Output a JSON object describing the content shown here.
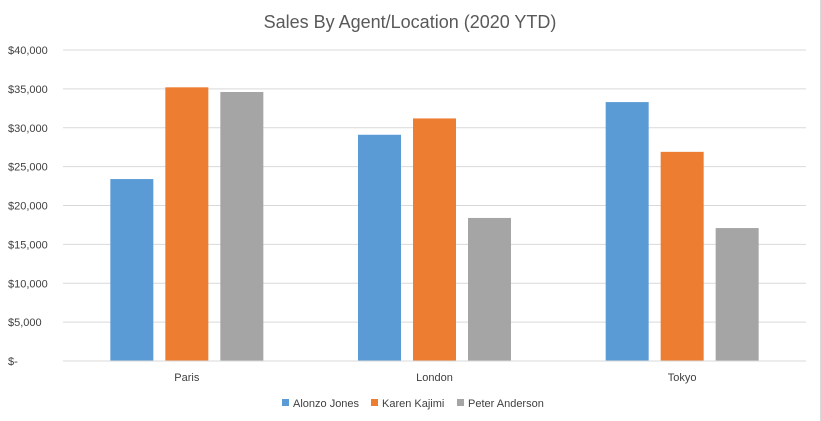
{
  "chart_data": {
    "type": "bar",
    "title": "Sales By Agent/Location (2020 YTD)",
    "xlabel": "",
    "ylabel": "",
    "categories": [
      "Paris",
      "London",
      "Tokyo"
    ],
    "series": [
      {
        "name": "Alonzo Jones",
        "color": "#5b9bd5",
        "values": [
          23400,
          29100,
          33300
        ]
      },
      {
        "name": "Karen Kajimi",
        "color": "#ed7d31",
        "values": [
          35200,
          31200,
          26900
        ]
      },
      {
        "name": "Peter Anderson",
        "color": "#a5a5a5",
        "values": [
          34600,
          18400,
          17100
        ]
      }
    ],
    "ylim": [
      0,
      40000
    ],
    "yticks": [
      0,
      5000,
      10000,
      15000,
      20000,
      25000,
      30000,
      35000,
      40000
    ],
    "ytick_labels": [
      "$-",
      "$5,000",
      "$10,000",
      "$15,000",
      "$20,000",
      "$25,000",
      "$30,000",
      "$35,000",
      "$40,000"
    ],
    "grid": true,
    "legend_position": "bottom"
  }
}
